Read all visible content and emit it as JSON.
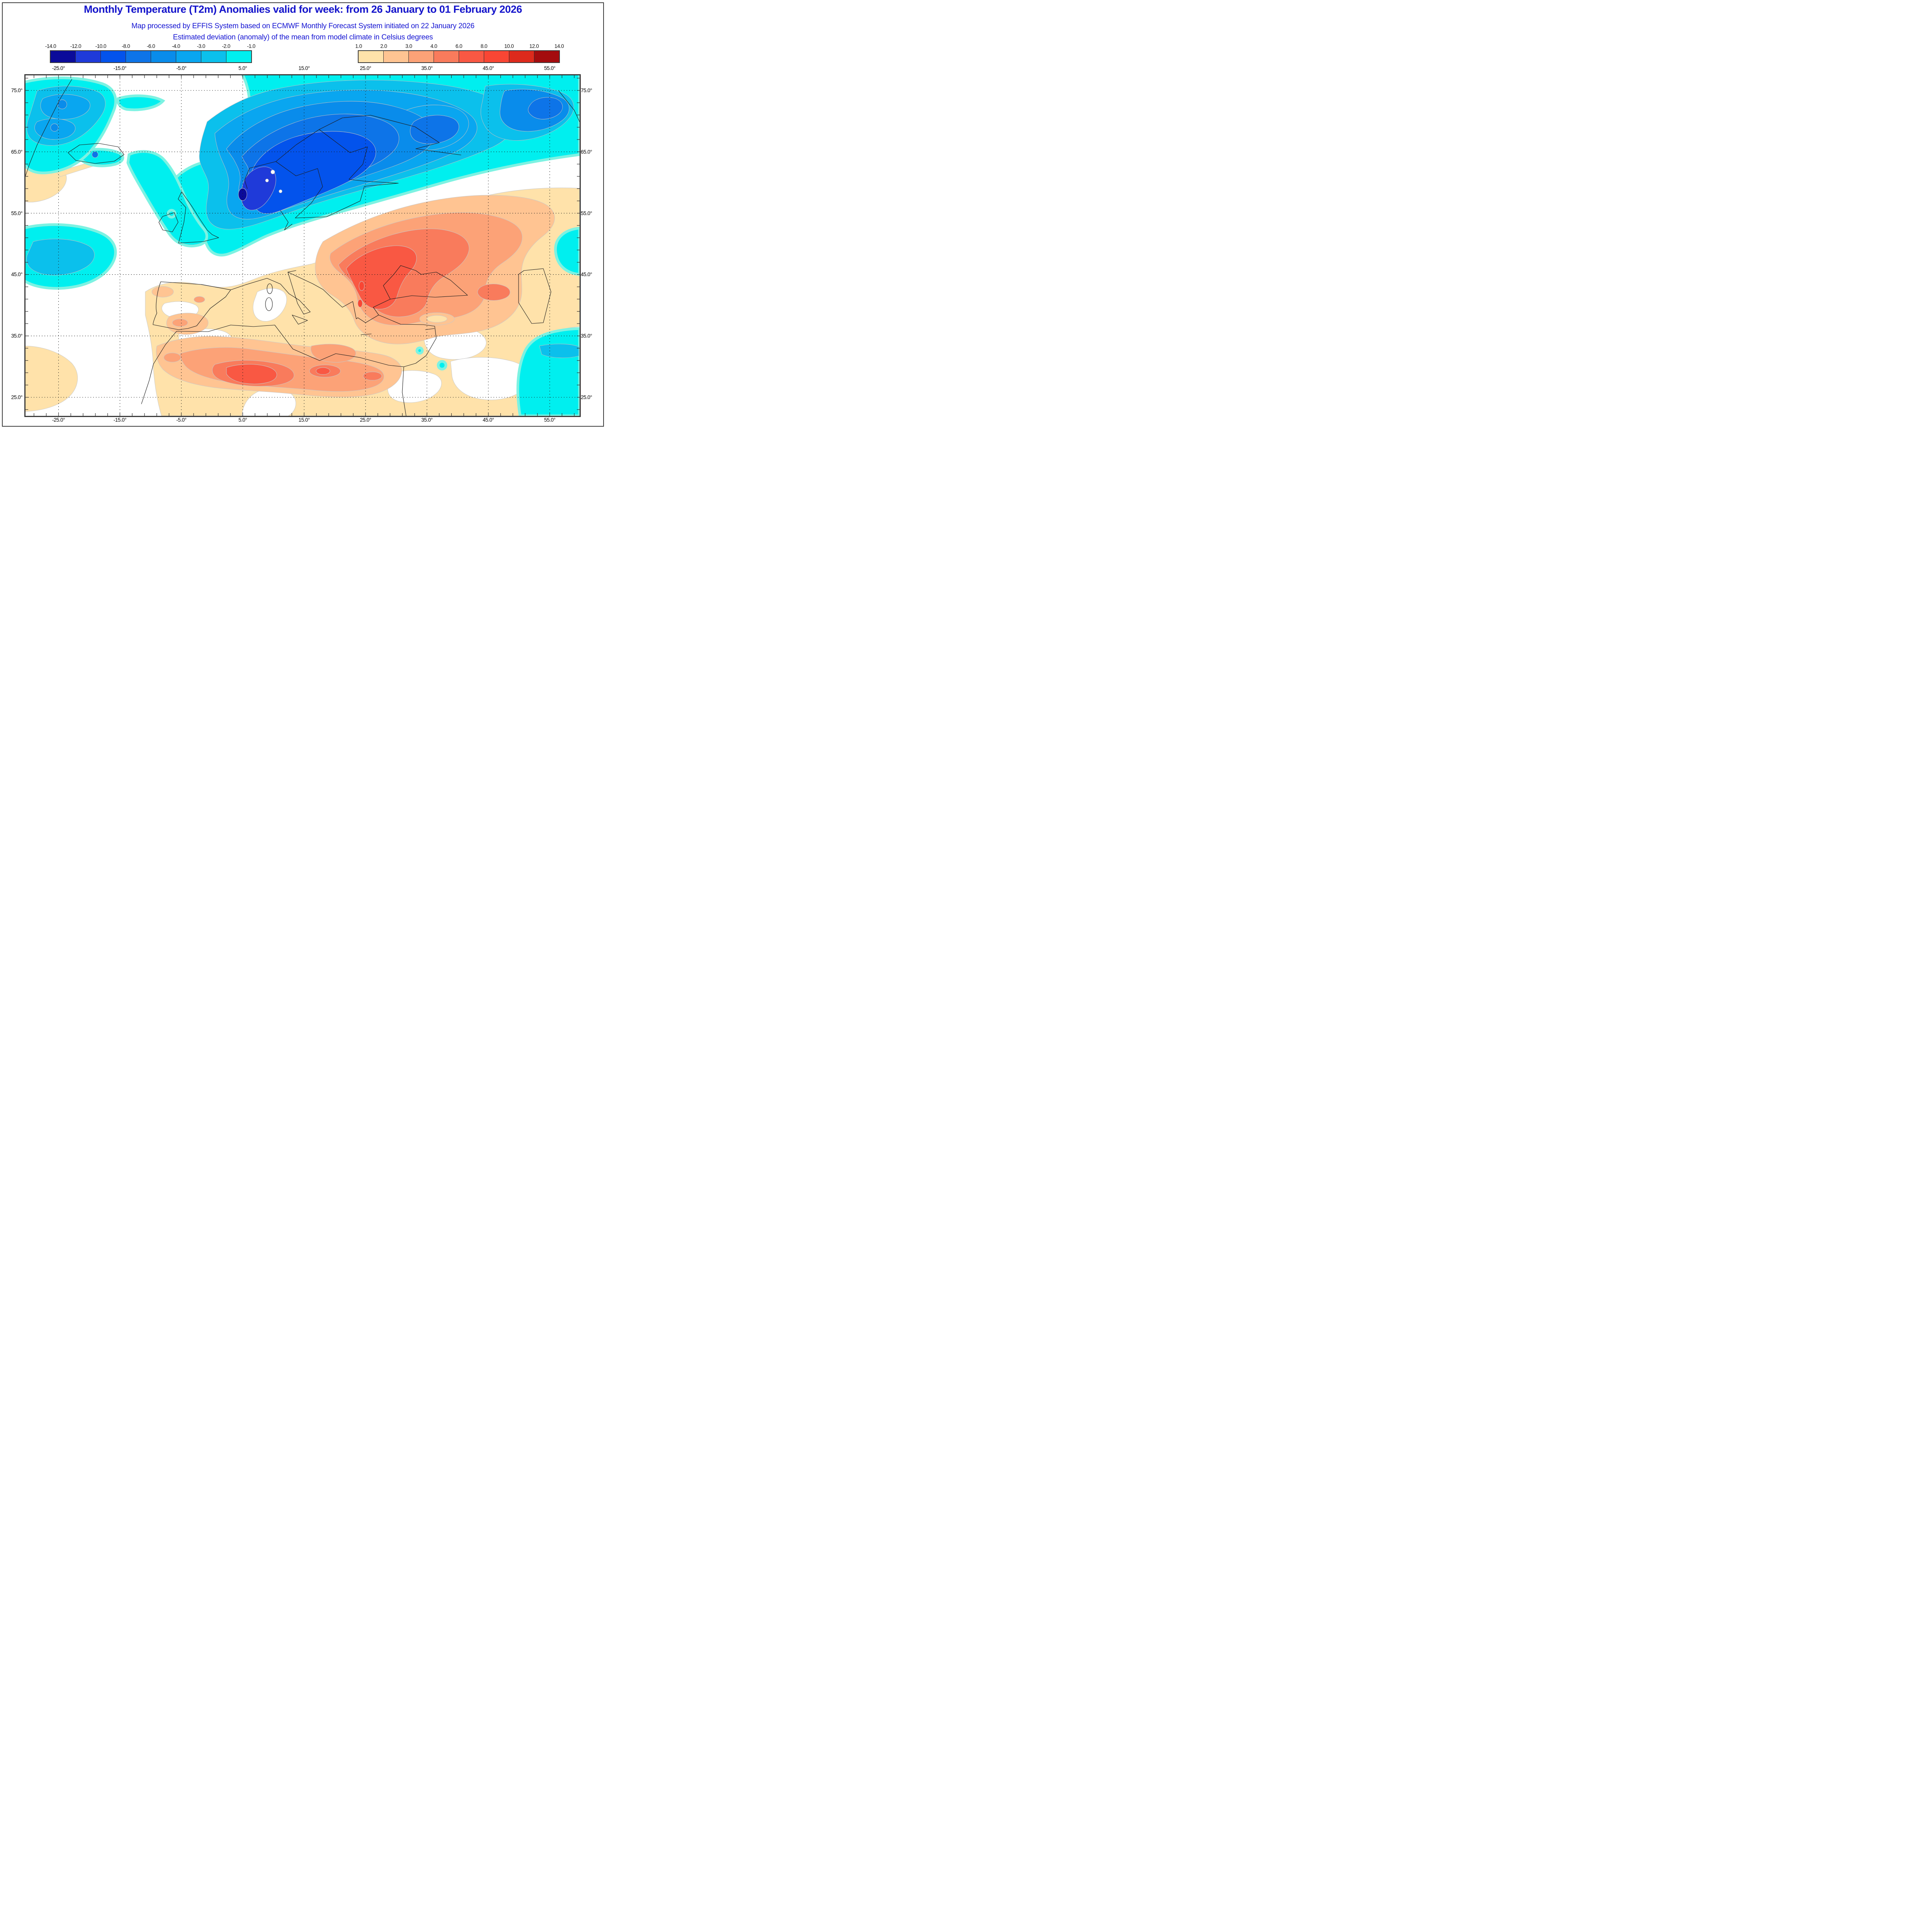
{
  "title": "Monthly Temperature (T2m) Anomalies valid for week: from 26 January to 01 February 2026",
  "subtitle1": "Map processed by EFFIS System based on ECMWF Monthly Forecast System initiated on 22 January 2026",
  "subtitle2": "Estimated deviation (anomaly) of the mean from model climate in Celsius degrees",
  "legend_negative": {
    "labels": [
      "-14.0",
      "-12.0",
      "-10.0",
      "-8.0",
      "-6.0",
      "-4.0",
      "-3.0",
      "-2.0",
      "-1.0"
    ],
    "colors": [
      "#0b0b9a",
      "#1f3ad9",
      "#0353ec",
      "#0d74e8",
      "#098ceb",
      "#09a6f0",
      "#0bc0ec",
      "#00efef"
    ]
  },
  "legend_positive": {
    "labels": [
      "1.0",
      "2.0",
      "3.0",
      "4.0",
      "6.0",
      "8.0",
      "10.0",
      "12.0",
      "14.0"
    ],
    "colors": [
      "#ffe2aa",
      "#ffc492",
      "#fca277",
      "#f97b5c",
      "#f95843",
      "#f94634",
      "#dd2a1c",
      "#a40c0e"
    ]
  },
  "map": {
    "top_labels": [
      "-25.0°",
      "-15.0°",
      "-5.0°",
      "5.0°",
      "15.0°",
      "25.0°",
      "35.0°",
      "45.0°",
      "55.0°"
    ],
    "bottom_labels": [
      "-25.0°",
      "-15.0°",
      "-5.0°",
      "5.0°",
      "15.0°",
      "25.0°",
      "35.0°",
      "45.0°",
      "55.0°"
    ],
    "left_labels": [
      "75.0°",
      "65.0°",
      "55.0°",
      "45.0°",
      "35.0°",
      "25.0°"
    ],
    "right_labels": [
      "75.0°",
      "65.0°",
      "55.0°",
      "45.0°",
      "35.0°",
      "25.0°"
    ],
    "palette": {
      "cold_fringe": "#7df2e2",
      "title_blue": "#1313cb",
      "map_border": "#3a3a3a",
      "coastline": "#1c1c1c",
      "contour_line": "#c8c8c8"
    }
  }
}
